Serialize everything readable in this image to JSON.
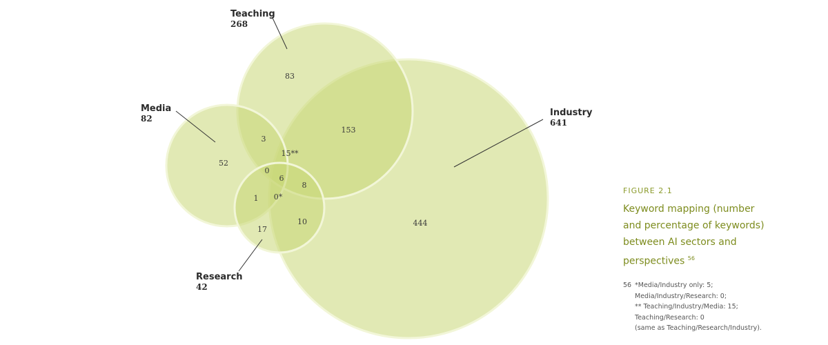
{
  "sets": {
    "teaching": {
      "name": "Teaching",
      "count": "268"
    },
    "media": {
      "name": "Media",
      "count": "82"
    },
    "industry": {
      "name": "Industry",
      "count": "641"
    },
    "research": {
      "name": "Research",
      "count": "42"
    }
  },
  "regions": {
    "teaching_only": "83",
    "media_only": "52",
    "industry_only": "444",
    "research_only": "17",
    "teaching_media": "3",
    "teaching_industry": "153",
    "teaching_industry_media": "15**",
    "teaching_media_research": "0",
    "all_four": "6",
    "teaching_industry_research": "8",
    "media_research": "1",
    "media_industry_research": "0*",
    "industry_research": "10"
  },
  "caption": {
    "figure_label": "FIGURE 2.1",
    "title_lines": [
      "Keyword mapping (number",
      "and percentage of keywords)",
      "between AI sectors and",
      "perspectives"
    ],
    "title_ref": "56"
  },
  "footnote": {
    "number": "56",
    "lines": [
      "*Media/Industry only: 5;",
      "Media/Industry/Research: 0;",
      "** Teaching/Industry/Media: 15;",
      "Teaching/Research: 0",
      "(same as Teaching/Research/Industry)."
    ]
  },
  "colors": {
    "circle_fill": "#c9d776",
    "circle_stroke": "#f2f6d8",
    "text": "#2b2b2b",
    "accent": "#7d8c1e",
    "leader": "#333333"
  }
}
